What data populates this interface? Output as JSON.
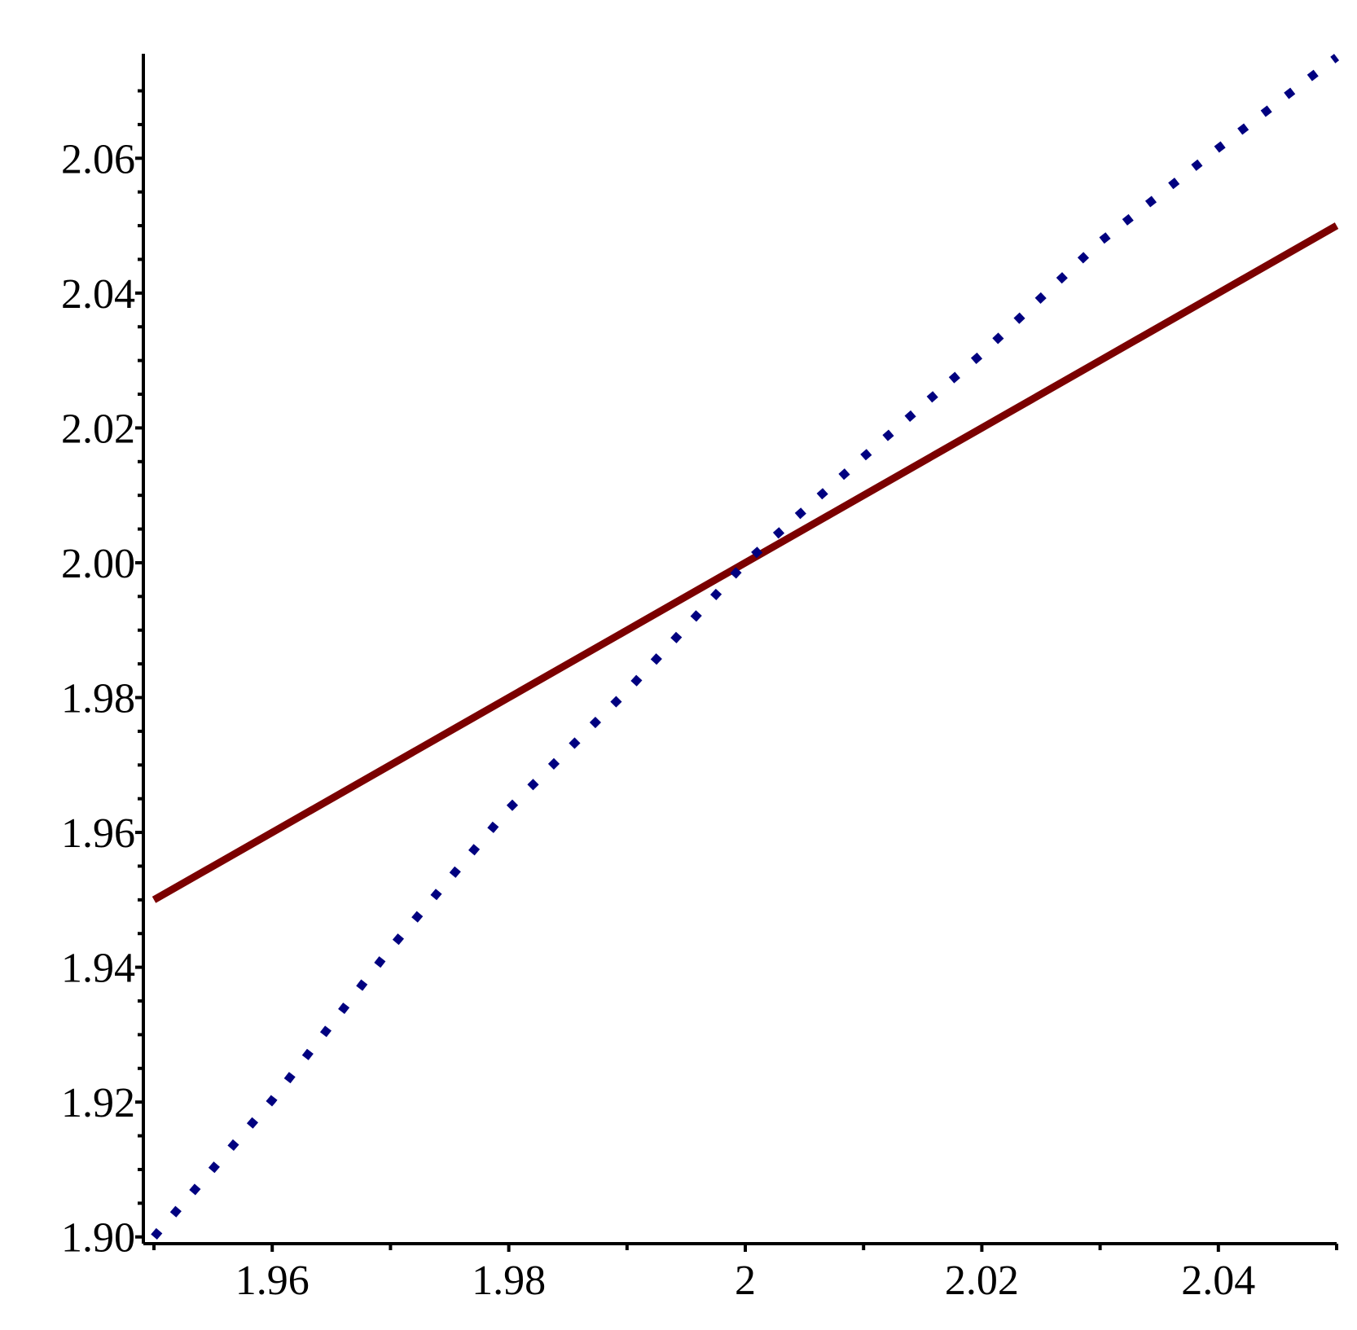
{
  "chart_data": {
    "type": "line",
    "x": [
      1.95,
      1.96,
      1.97,
      1.98,
      1.99,
      2.0,
      2.01,
      2.02,
      2.03,
      2.04,
      2.05
    ],
    "series": [
      {
        "color": "#7b0000",
        "style": "solid",
        "values": [
          1.95,
          1.96,
          1.97,
          1.98,
          1.99,
          2.0,
          2.01,
          2.02,
          2.03,
          2.04,
          2.05
        ]
      },
      {
        "color": "#000080",
        "style": "dotted",
        "values": [
          1.9,
          1.9203,
          1.9428,
          1.9635,
          1.981,
          2.0,
          2.0157,
          2.031,
          2.0476,
          2.0615,
          2.075
        ]
      }
    ],
    "xlim": [
      1.949,
      2.05
    ],
    "ylim": [
      1.899,
      2.0755
    ],
    "xticks": [
      1.96,
      1.98,
      2,
      2.02,
      2.04
    ],
    "xticks_minor": [
      1.95,
      1.97,
      1.99,
      2.01,
      2.03,
      2.05
    ],
    "yticks": [
      {
        "value": 1.9,
        "label": "1.90"
      },
      1.92,
      1.94,
      1.96,
      1.98,
      {
        "value": 2.0,
        "label": "2.00"
      },
      2.02,
      2.04,
      2.06
    ],
    "yticks_minor": [
      1.905,
      1.91,
      1.915,
      1.925,
      1.93,
      1.935,
      1.945,
      1.95,
      1.955,
      1.965,
      1.97,
      1.975,
      1.985,
      1.99,
      1.995,
      2.005,
      2.01,
      2.015,
      2.025,
      2.03,
      2.035,
      2.045,
      2.05,
      2.055,
      2.065,
      2.07
    ]
  }
}
